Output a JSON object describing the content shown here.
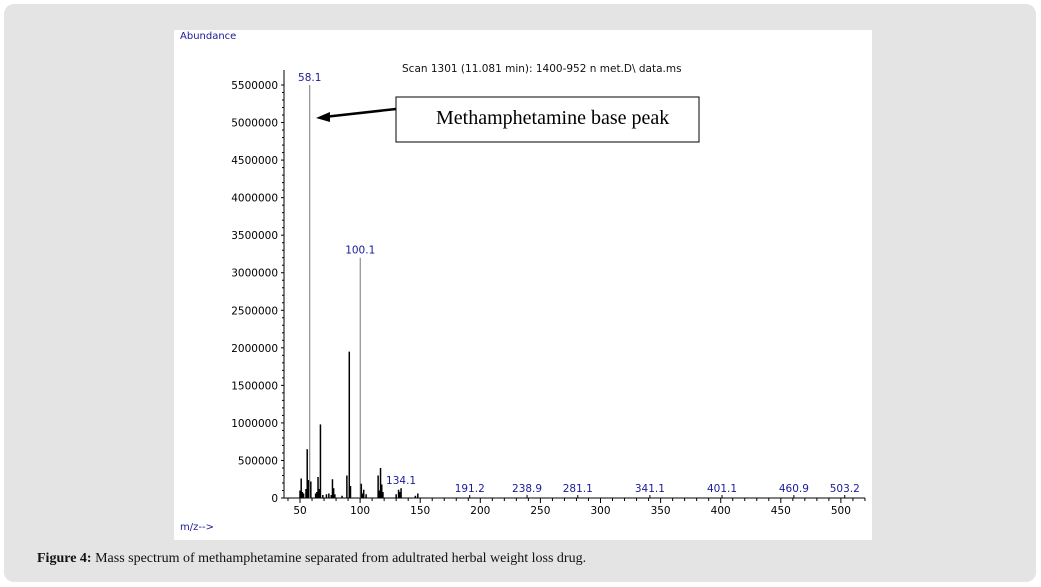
{
  "chart_data": {
    "type": "bar",
    "title": "Scan 1301 (11.081 min): 1400-952 n met.D\\ data.ms",
    "ylabel": "Abundance",
    "xlabel": "m/z-->",
    "xlim": [
      40,
      520
    ],
    "ylim": [
      0,
      5500000
    ],
    "xticks": [
      50,
      100,
      150,
      200,
      250,
      300,
      350,
      400,
      450,
      500
    ],
    "yticks": [
      0,
      500000,
      1000000,
      1500000,
      2000000,
      2500000,
      3000000,
      3500000,
      4000000,
      4500000,
      5000000,
      5500000
    ],
    "peaks": [
      {
        "mz": 50,
        "y": 100000
      },
      {
        "mz": 51,
        "y": 260000
      },
      {
        "mz": 52,
        "y": 80000
      },
      {
        "mz": 53,
        "y": 60000
      },
      {
        "mz": 55,
        "y": 120000
      },
      {
        "mz": 56,
        "y": 650000
      },
      {
        "mz": 57,
        "y": 240000
      },
      {
        "mz": 58.1,
        "y": 5500000
      },
      {
        "mz": 59,
        "y": 220000
      },
      {
        "mz": 63,
        "y": 60000
      },
      {
        "mz": 64,
        "y": 80000
      },
      {
        "mz": 65,
        "y": 280000
      },
      {
        "mz": 66,
        "y": 120000
      },
      {
        "mz": 67,
        "y": 980000
      },
      {
        "mz": 69,
        "y": 40000
      },
      {
        "mz": 72,
        "y": 50000
      },
      {
        "mz": 74,
        "y": 60000
      },
      {
        "mz": 76,
        "y": 40000
      },
      {
        "mz": 77,
        "y": 250000
      },
      {
        "mz": 78,
        "y": 130000
      },
      {
        "mz": 79,
        "y": 50000
      },
      {
        "mz": 85,
        "y": 30000
      },
      {
        "mz": 89,
        "y": 300000
      },
      {
        "mz": 91,
        "y": 1950000
      },
      {
        "mz": 92,
        "y": 160000
      },
      {
        "mz": 100.1,
        "y": 3200000
      },
      {
        "mz": 101,
        "y": 190000
      },
      {
        "mz": 102,
        "y": 60000
      },
      {
        "mz": 103,
        "y": 110000
      },
      {
        "mz": 105,
        "y": 50000
      },
      {
        "mz": 115,
        "y": 300000
      },
      {
        "mz": 116,
        "y": 100000
      },
      {
        "mz": 117,
        "y": 400000
      },
      {
        "mz": 118,
        "y": 180000
      },
      {
        "mz": 119,
        "y": 80000
      },
      {
        "mz": 130,
        "y": 50000
      },
      {
        "mz": 132,
        "y": 110000
      },
      {
        "mz": 133,
        "y": 80000
      },
      {
        "mz": 134.1,
        "y": 130000
      },
      {
        "mz": 146,
        "y": 30000
      },
      {
        "mz": 148,
        "y": 60000
      }
    ],
    "peak_labels": [
      {
        "mz": 58.1,
        "text": "58.1"
      },
      {
        "mz": 100.1,
        "text": "100.1"
      },
      {
        "mz": 134.1,
        "text": "134.1"
      },
      {
        "mz": 191.2,
        "text": "191.2"
      },
      {
        "mz": 238.9,
        "text": "238.9"
      },
      {
        "mz": 281.1,
        "text": "281.1"
      },
      {
        "mz": 341.1,
        "text": "341.1"
      },
      {
        "mz": 401.1,
        "text": "401.1"
      },
      {
        "mz": 460.9,
        "text": "460.9"
      },
      {
        "mz": 503.2,
        "text": "503.2"
      }
    ],
    "annotation": "Methamphetamine base peak"
  },
  "caption": {
    "label": "Figure 4:",
    "text": " Mass spectrum of methamphetamine separated from adultrated herbal weight loss drug."
  },
  "colors": {
    "label": "#1a1a9a",
    "axis": "#000000"
  }
}
